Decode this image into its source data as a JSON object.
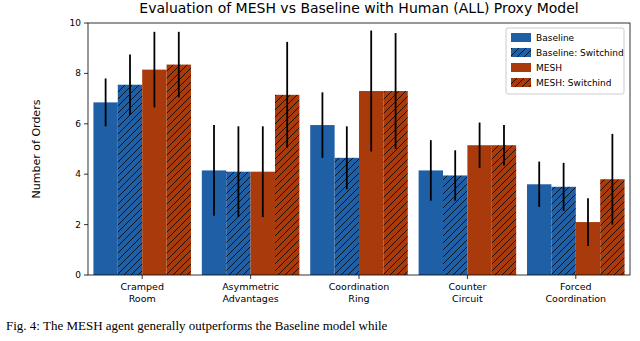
{
  "chart_data": {
    "type": "bar",
    "title": "Evaluation of MESH vs Baseline with Human (ALL) Proxy Model",
    "y_label": "Number of Orders",
    "annotations": [
      "Fig. 4: The MESH agent generally outperforms the Baseline model while"
    ],
    "categories": [
      "Cramped Room",
      "Asymmetric Advantages",
      "Coordination Ring",
      "Counter Circuit",
      "Forced Coordination"
    ],
    "series": [
      {
        "name": "Baseline",
        "color": "#1f5fa6",
        "line_style": "solid",
        "values": [
          6.85,
          4.15,
          5.95,
          4.15,
          3.6
        ],
        "errors": [
          0.95,
          1.8,
          1.3,
          1.2,
          0.9
        ]
      },
      {
        "name": "Baseline: Switchind",
        "color": "#1f5fa6",
        "line_style": "hatched",
        "values": [
          7.55,
          4.1,
          4.65,
          3.95,
          3.5
        ],
        "errors": [
          1.2,
          1.8,
          1.25,
          1.0,
          0.95
        ]
      },
      {
        "name": "MESH",
        "color": "#a83a0c",
        "line_style": "solid",
        "values": [
          8.15,
          4.1,
          7.3,
          5.15,
          2.1
        ],
        "errors": [
          1.5,
          1.8,
          2.4,
          0.9,
          0.95
        ]
      },
      {
        "name": "MESH: Switchind",
        "color": "#a83a0c",
        "line_style": "hatched",
        "values": [
          8.35,
          7.15,
          7.3,
          5.15,
          3.8
        ],
        "errors": [
          1.3,
          2.1,
          2.3,
          0.8,
          1.8
        ]
      }
    ],
    "ylim": [
      0,
      10
    ],
    "yticks": [
      0,
      2,
      4,
      6,
      8,
      10
    ],
    "grid": false,
    "legend": "upper right"
  }
}
